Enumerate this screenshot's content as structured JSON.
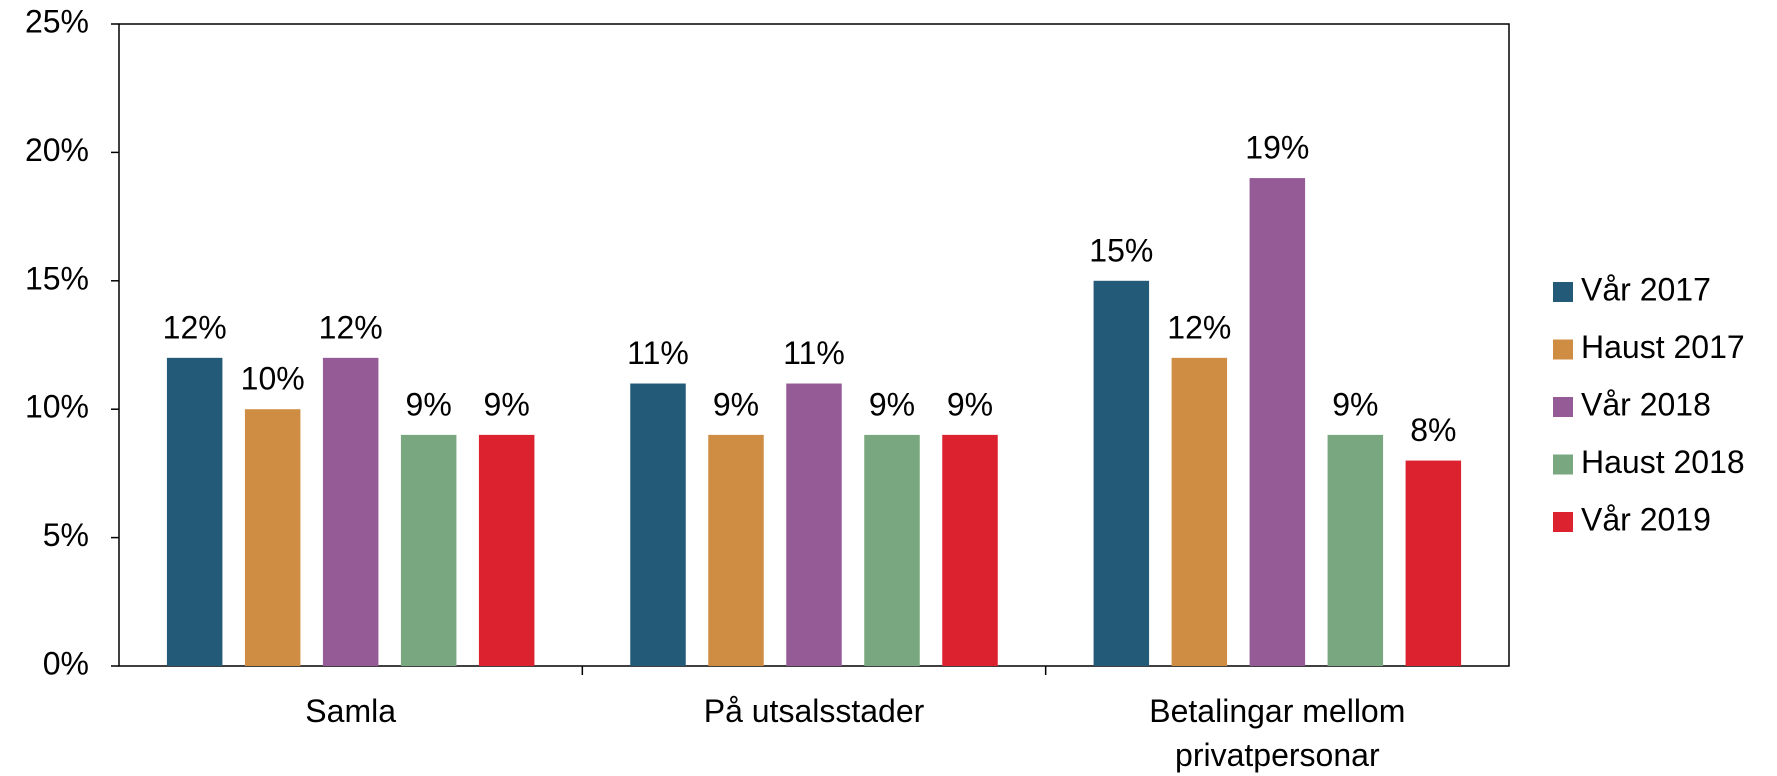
{
  "chart_data": {
    "type": "bar",
    "categories": [
      "Samla",
      "På utsalsstader",
      "Betalingar mellom privatpersonar"
    ],
    "series": [
      {
        "name": "Vår 2017",
        "color": "#235a78",
        "values": [
          12,
          11,
          15
        ],
        "value_labels": [
          "12%",
          "11%",
          "15%"
        ]
      },
      {
        "name": "Haust 2017",
        "color": "#cf8d43",
        "values": [
          10,
          9,
          12
        ],
        "value_labels": [
          "10%",
          "9%",
          "12%"
        ]
      },
      {
        "name": "Vår 2018",
        "color": "#955b96",
        "values": [
          12,
          11,
          19
        ],
        "value_labels": [
          "12%",
          "11%",
          "19%"
        ]
      },
      {
        "name": "Haust 2018",
        "color": "#79a77f",
        "values": [
          9,
          9,
          9
        ],
        "value_labels": [
          "9%",
          "9%",
          "9%"
        ]
      },
      {
        "name": "Vår 2019",
        "color": "#dc222e",
        "values": [
          9,
          9,
          8
        ],
        "value_labels": [
          "9%",
          "9%",
          "8%"
        ]
      }
    ],
    "ylim": [
      0,
      25
    ],
    "yticks": [
      {
        "value": 0,
        "label": "0%"
      },
      {
        "value": 5,
        "label": "5%"
      },
      {
        "value": 10,
        "label": "10%"
      },
      {
        "value": 15,
        "label": "15%"
      },
      {
        "value": 20,
        "label": "20%"
      },
      {
        "value": 25,
        "label": "25%"
      }
    ],
    "legend": "right"
  }
}
